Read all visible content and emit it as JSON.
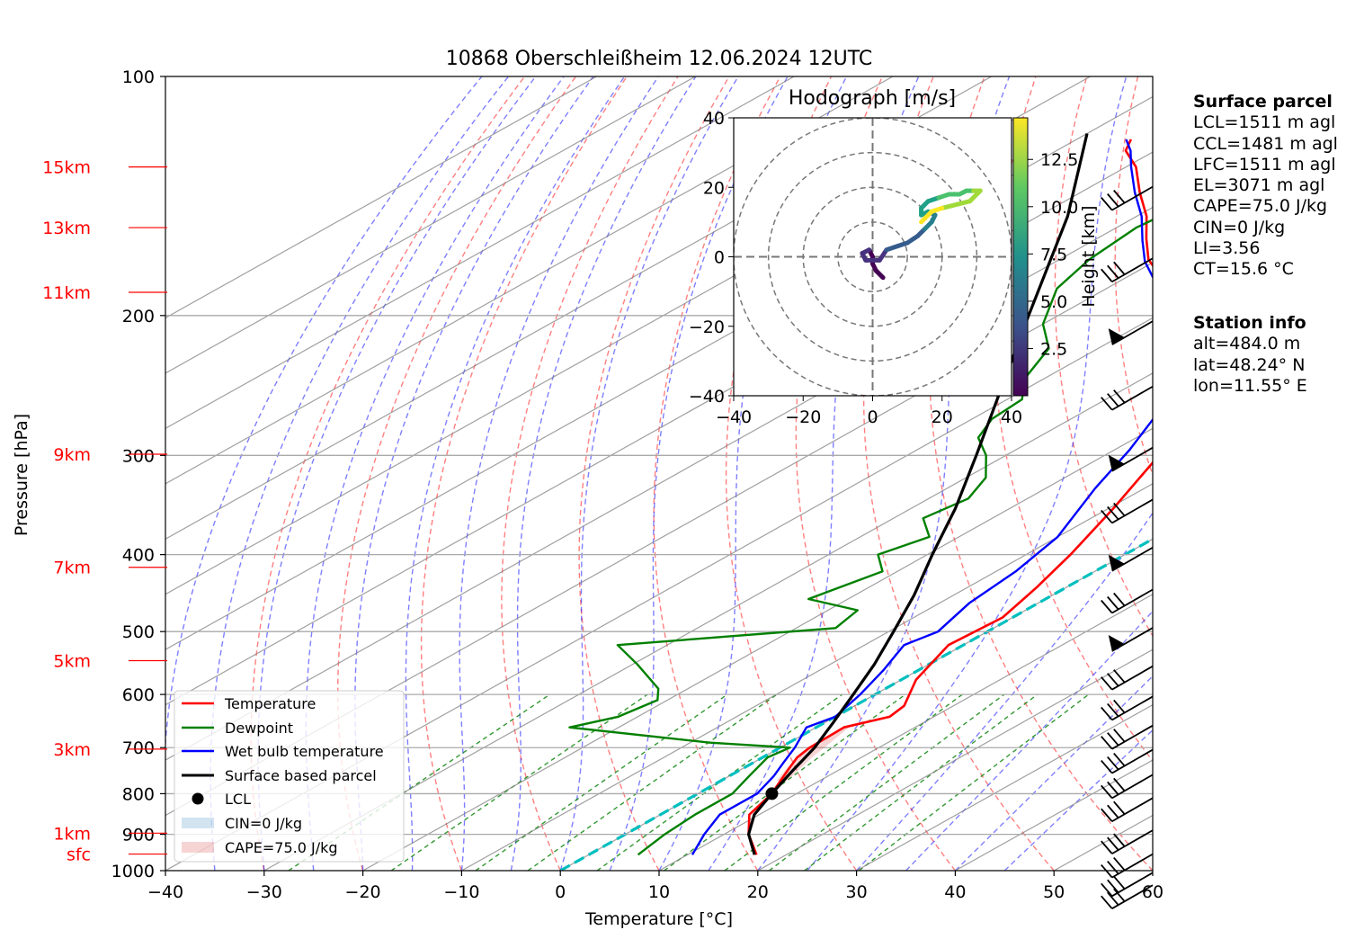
{
  "chart_data": {
    "type": "skew-t log-p",
    "title": "10868 Oberschleißheim 12.06.2024 12UTC",
    "xlabel": "Temperature [°C]",
    "ylabel": "Pressure [hPa]",
    "xlim": [
      -40,
      60
    ],
    "ylim": [
      1000,
      100
    ],
    "x_ticks": [
      "−40",
      "−30",
      "−20",
      "−10",
      "0",
      "10",
      "20",
      "30",
      "40",
      "50",
      "60"
    ],
    "pressure_ticks": [
      {
        "p": 100,
        "label": "100"
      },
      {
        "p": 200,
        "label": "200"
      },
      {
        "p": 300,
        "label": "300"
      },
      {
        "p": 400,
        "label": "400"
      },
      {
        "p": 500,
        "label": "500"
      },
      {
        "p": 600,
        "label": "600"
      },
      {
        "p": 700,
        "label": "700"
      },
      {
        "p": 800,
        "label": "800"
      },
      {
        "p": 900,
        "label": "900"
      },
      {
        "p": 1000,
        "label": "1000"
      }
    ],
    "height_labels": [
      {
        "p": 130,
        "label": "15km"
      },
      {
        "p": 155,
        "label": "13km"
      },
      {
        "p": 187,
        "label": "11km"
      },
      {
        "p": 299,
        "label": "9km"
      },
      {
        "p": 415,
        "label": "7km"
      },
      {
        "p": 544,
        "label": "5km"
      },
      {
        "p": 703,
        "label": "3km"
      },
      {
        "p": 897,
        "label": "1km"
      },
      {
        "p": 953,
        "label": "sfc"
      }
    ],
    "grid": true,
    "series": [
      {
        "name": "Temperature",
        "color": "#ff0000",
        "points": [
          [
            17.0,
            955
          ],
          [
            12.5,
            900
          ],
          [
            9.0,
            850
          ],
          [
            7.5,
            800
          ],
          [
            6.0,
            770
          ],
          [
            4.5,
            740
          ],
          [
            3.5,
            720
          ],
          [
            3.0,
            700
          ],
          [
            2.8,
            660
          ],
          [
            5.5,
            640
          ],
          [
            5.0,
            620
          ],
          [
            1.5,
            575
          ],
          [
            -1.5,
            520
          ],
          [
            -1.0,
            480
          ],
          [
            -3.0,
            440
          ],
          [
            -5.5,
            400
          ],
          [
            -9.5,
            350
          ],
          [
            -14.5,
            300
          ],
          [
            -20.0,
            260
          ],
          [
            -24.0,
            235
          ],
          [
            -30.0,
            210
          ],
          [
            -34.0,
            200
          ],
          [
            -40.0,
            190
          ],
          [
            -46.0,
            180
          ],
          [
            -51.0,
            170
          ],
          [
            -55.0,
            160
          ],
          [
            -59.0,
            150
          ],
          [
            -64.0,
            140
          ],
          [
            -69.0,
            130
          ],
          [
            -73.0,
            124
          ],
          [
            -74.5,
            120
          ]
        ]
      },
      {
        "name": "Dewpoint",
        "color": "#008000",
        "points": [
          [
            5.0,
            955
          ],
          [
            4.0,
            900
          ],
          [
            3.5,
            850
          ],
          [
            3.5,
            800
          ],
          [
            2.0,
            760
          ],
          [
            0.5,
            720
          ],
          [
            1.0,
            700
          ],
          [
            -8.0,
            690
          ],
          [
            -25.0,
            660
          ],
          [
            -22.0,
            640
          ],
          [
            -21.0,
            610
          ],
          [
            -23.0,
            590
          ],
          [
            -29.5,
            550
          ],
          [
            -35.0,
            520
          ],
          [
            -16.0,
            495
          ],
          [
            -17.0,
            470
          ],
          [
            -24.0,
            455
          ],
          [
            -23.0,
            440
          ],
          [
            -21.5,
            420
          ],
          [
            -25.0,
            400
          ],
          [
            -23.0,
            380
          ],
          [
            -27.0,
            360
          ],
          [
            -26.0,
            340
          ],
          [
            -28.0,
            320
          ],
          [
            -32.0,
            300
          ],
          [
            -36.0,
            285
          ],
          [
            -38.0,
            270
          ],
          [
            -38.5,
            255
          ],
          [
            -42.0,
            240
          ],
          [
            -45.0,
            220
          ],
          [
            -50.0,
            205
          ],
          [
            -55.0,
            185
          ],
          [
            -57.0,
            170
          ],
          [
            -58.0,
            155
          ],
          [
            -57.0,
            142
          ],
          [
            -57.5,
            130
          ],
          [
            -58.0,
            120
          ]
        ]
      },
      {
        "name": "Wet bulb temperature",
        "color": "#0000ff",
        "points": [
          [
            10.5,
            955
          ],
          [
            8.0,
            900
          ],
          [
            6.0,
            850
          ],
          [
            6.0,
            800
          ],
          [
            4.5,
            760
          ],
          [
            3.0,
            730
          ],
          [
            1.5,
            700
          ],
          [
            -1.0,
            660
          ],
          [
            0.0,
            640
          ],
          [
            -1.5,
            600
          ],
          [
            -3.5,
            560
          ],
          [
            -6.0,
            520
          ],
          [
            -5.0,
            500
          ],
          [
            -7.0,
            460
          ],
          [
            -8.0,
            420
          ],
          [
            -10.0,
            380
          ],
          [
            -15.0,
            330
          ],
          [
            -18.5,
            295
          ],
          [
            -23.0,
            260
          ],
          [
            -26.5,
            240
          ],
          [
            -31.0,
            212
          ],
          [
            -35.0,
            202
          ],
          [
            -40.0,
            192
          ],
          [
            -46.0,
            182
          ],
          [
            -51.0,
            171
          ],
          [
            -55.0,
            161
          ],
          [
            -59.5,
            150
          ],
          [
            -64.5,
            140
          ],
          [
            -69.5,
            130
          ],
          [
            -72.5,
            124
          ],
          [
            -75.0,
            120
          ]
        ]
      },
      {
        "name": "Surface based parcel",
        "color": "#000000",
        "points": [
          [
            16.8,
            955
          ],
          [
            12.5,
            900
          ],
          [
            9.5,
            850
          ],
          [
            7.5,
            800
          ],
          [
            5.5,
            750
          ],
          [
            3.5,
            700
          ],
          [
            0.8,
            650
          ],
          [
            -2.2,
            600
          ],
          [
            -5.5,
            550
          ],
          [
            -9.5,
            500
          ],
          [
            -14.0,
            450
          ],
          [
            -19.5,
            400
          ],
          [
            -25.5,
            350
          ],
          [
            -33.0,
            300
          ],
          [
            -42.0,
            250
          ],
          [
            -53.0,
            200
          ],
          [
            -67.0,
            150
          ],
          [
            -80.0,
            118
          ]
        ]
      }
    ],
    "lcl": {
      "label": "LCL",
      "t": 7.5,
      "p": 800
    },
    "legend": {
      "placement": "lower-left",
      "entries": [
        "Temperature",
        "Dewpoint",
        "Wet bulb temperature",
        "Surface based parcel",
        "LCL",
        "CIN=0 J/kg",
        "CAPE=75.0 J/kg"
      ]
    },
    "hodograph": {
      "title": "Hodograph [m/s]",
      "xlim": [
        -40,
        40
      ],
      "ylim": [
        -40,
        40
      ],
      "x_ticks": [
        "−40",
        "−20",
        "0",
        "20",
        "40"
      ],
      "y_ticks": [
        "40",
        "20",
        "0",
        "−20",
        "−40"
      ],
      "colorbar_label": "Height [km]",
      "colorbar_ticks": [
        "2.5",
        "5.0",
        "7.5",
        "10.0",
        "12.5"
      ],
      "colormap": "viridis",
      "points": [
        [
          3,
          -6
        ],
        [
          1,
          -4
        ],
        [
          0,
          -2
        ],
        [
          0,
          0
        ],
        [
          -1,
          2
        ],
        [
          -3,
          1
        ],
        [
          -2,
          -1
        ],
        [
          2,
          -1
        ],
        [
          4,
          2
        ],
        [
          7,
          3
        ],
        [
          10,
          4
        ],
        [
          13,
          6
        ],
        [
          15,
          8
        ],
        [
          17,
          10
        ],
        [
          18,
          12
        ],
        [
          16,
          13
        ],
        [
          14,
          12
        ],
        [
          14,
          14
        ],
        [
          16,
          16
        ],
        [
          19,
          17
        ],
        [
          22,
          18
        ],
        [
          25,
          18
        ],
        [
          27,
          19
        ],
        [
          29,
          19
        ],
        [
          31,
          19
        ],
        [
          28,
          16
        ],
        [
          24,
          15
        ],
        [
          20,
          14
        ],
        [
          17,
          13
        ],
        [
          15,
          11
        ],
        [
          14,
          10
        ]
      ]
    }
  },
  "surface_parcel": {
    "title": "Surface parcel",
    "lines": [
      "LCL=1511 m agl",
      "CCL=1481 m agl",
      "LFC=1511 m agl",
      "EL=3071 m agl",
      "CAPE=75.0 J/kg",
      "CIN=0 J/kg",
      "LI=3.56",
      "CT=15.6 °C"
    ]
  },
  "station_info": {
    "title": "Station info",
    "lines": [
      "alt=484.0 m",
      "lat=48.24° N",
      "lon=11.55° E"
    ]
  }
}
